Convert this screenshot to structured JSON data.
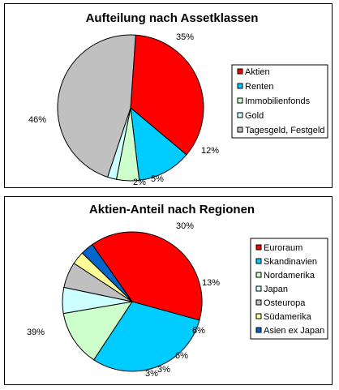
{
  "chart_data": [
    {
      "type": "pie",
      "title": "Aufteilung nach Assetklassen",
      "legend_position": "right",
      "slices": [
        {
          "label": "Aktien",
          "value": 35,
          "display": "35%",
          "color": "#ff0000"
        },
        {
          "label": "Renten",
          "value": 12,
          "display": "12%",
          "color": "#00ccff"
        },
        {
          "label": "Immobilienfonds",
          "value": 5,
          "display": "5%",
          "color": "#ccffcc"
        },
        {
          "label": "Gold",
          "value": 2,
          "display": "2%",
          "color": "#ccffff"
        },
        {
          "label": "Tagesgeld, Festgeld",
          "value": 46,
          "display": "46%",
          "color": "#c0c0c0"
        }
      ]
    },
    {
      "type": "pie",
      "title": "Aktien-Anteil nach Regionen",
      "legend_position": "right",
      "slices": [
        {
          "label": "Euroraum",
          "value": 39,
          "display": "39%",
          "color": "#ff0000"
        },
        {
          "label": "Skandinavien",
          "value": 30,
          "display": "30%",
          "color": "#00ccff"
        },
        {
          "label": "Nordamerika",
          "value": 13,
          "display": "13%",
          "color": "#ccffcc"
        },
        {
          "label": "Japan",
          "value": 6,
          "display": "6%",
          "color": "#ccffff"
        },
        {
          "label": "Osteuropa",
          "value": 6,
          "display": "6%",
          "color": "#c0c0c0"
        },
        {
          "label": "Südamerika",
          "value": 3,
          "display": "3%",
          "color": "#ffff99"
        },
        {
          "label": "Asien ex Japan",
          "value": 3,
          "display": "3%",
          "color": "#0066cc"
        }
      ]
    }
  ]
}
